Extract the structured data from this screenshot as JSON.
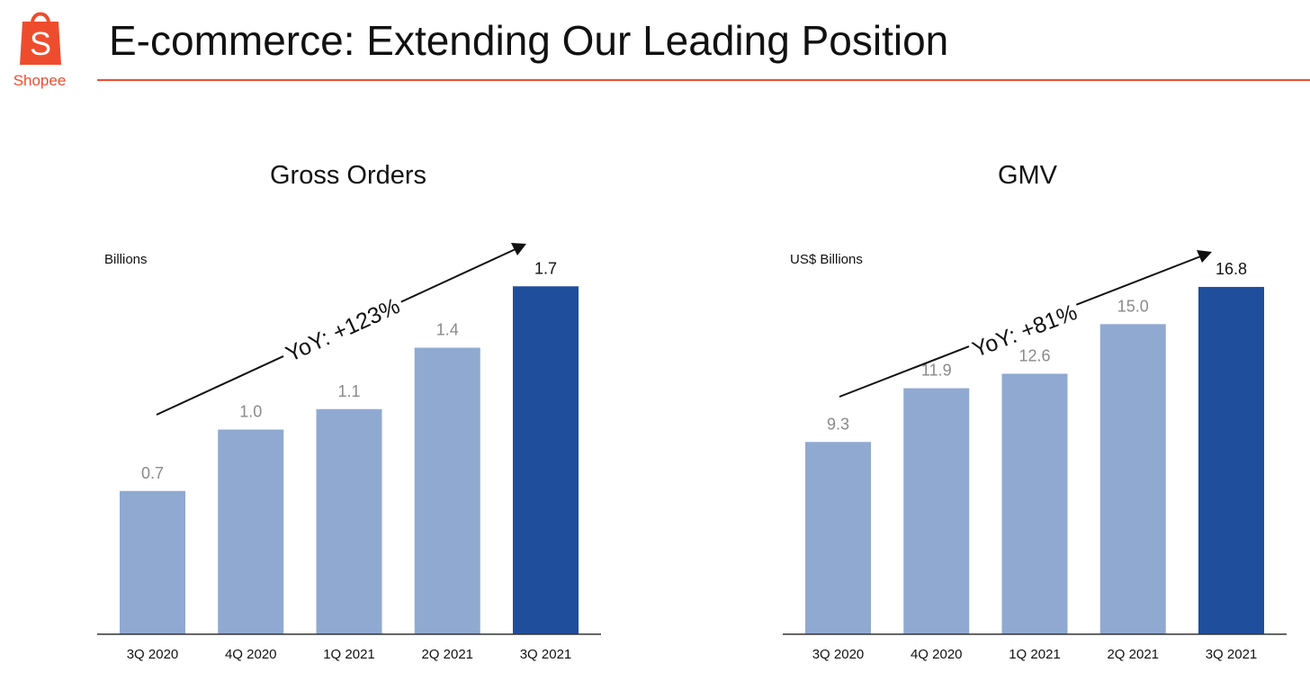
{
  "brand": {
    "logo_letter": "S",
    "name": "Shopee",
    "color": "#ee4d2d"
  },
  "page": {
    "title": "E-commerce: Extending Our Leading Position"
  },
  "colors": {
    "bar": "#90a9d1",
    "bar_highlight": "#1f4e9c",
    "axis": "#333333"
  },
  "chart_data": [
    {
      "type": "bar",
      "title": "Gross Orders",
      "unit_label": "Billions",
      "categories": [
        "3Q 2020",
        "4Q 2020",
        "1Q 2021",
        "2Q 2021",
        "3Q 2021"
      ],
      "values": [
        0.7,
        1.0,
        1.1,
        1.4,
        1.7
      ],
      "value_labels": [
        "0.7",
        "1.0",
        "1.1",
        "1.4",
        "1.7"
      ],
      "highlight_index": 4,
      "annotation": "YoY: +123%",
      "ylim": [
        0,
        2.0
      ],
      "grid": false,
      "legend": "none"
    },
    {
      "type": "bar",
      "title": "GMV",
      "unit_label": "US$ Billions",
      "categories": [
        "3Q 2020",
        "4Q 2020",
        "1Q 2021",
        "2Q 2021",
        "3Q 2021"
      ],
      "values": [
        9.3,
        11.9,
        12.6,
        15.0,
        16.8
      ],
      "value_labels": [
        "9.3",
        "11.9",
        "12.6",
        "15.0",
        "16.8"
      ],
      "highlight_index": 4,
      "annotation": "YoY: +81%",
      "ylim": [
        0,
        19.8
      ],
      "grid": false,
      "legend": "none"
    }
  ]
}
